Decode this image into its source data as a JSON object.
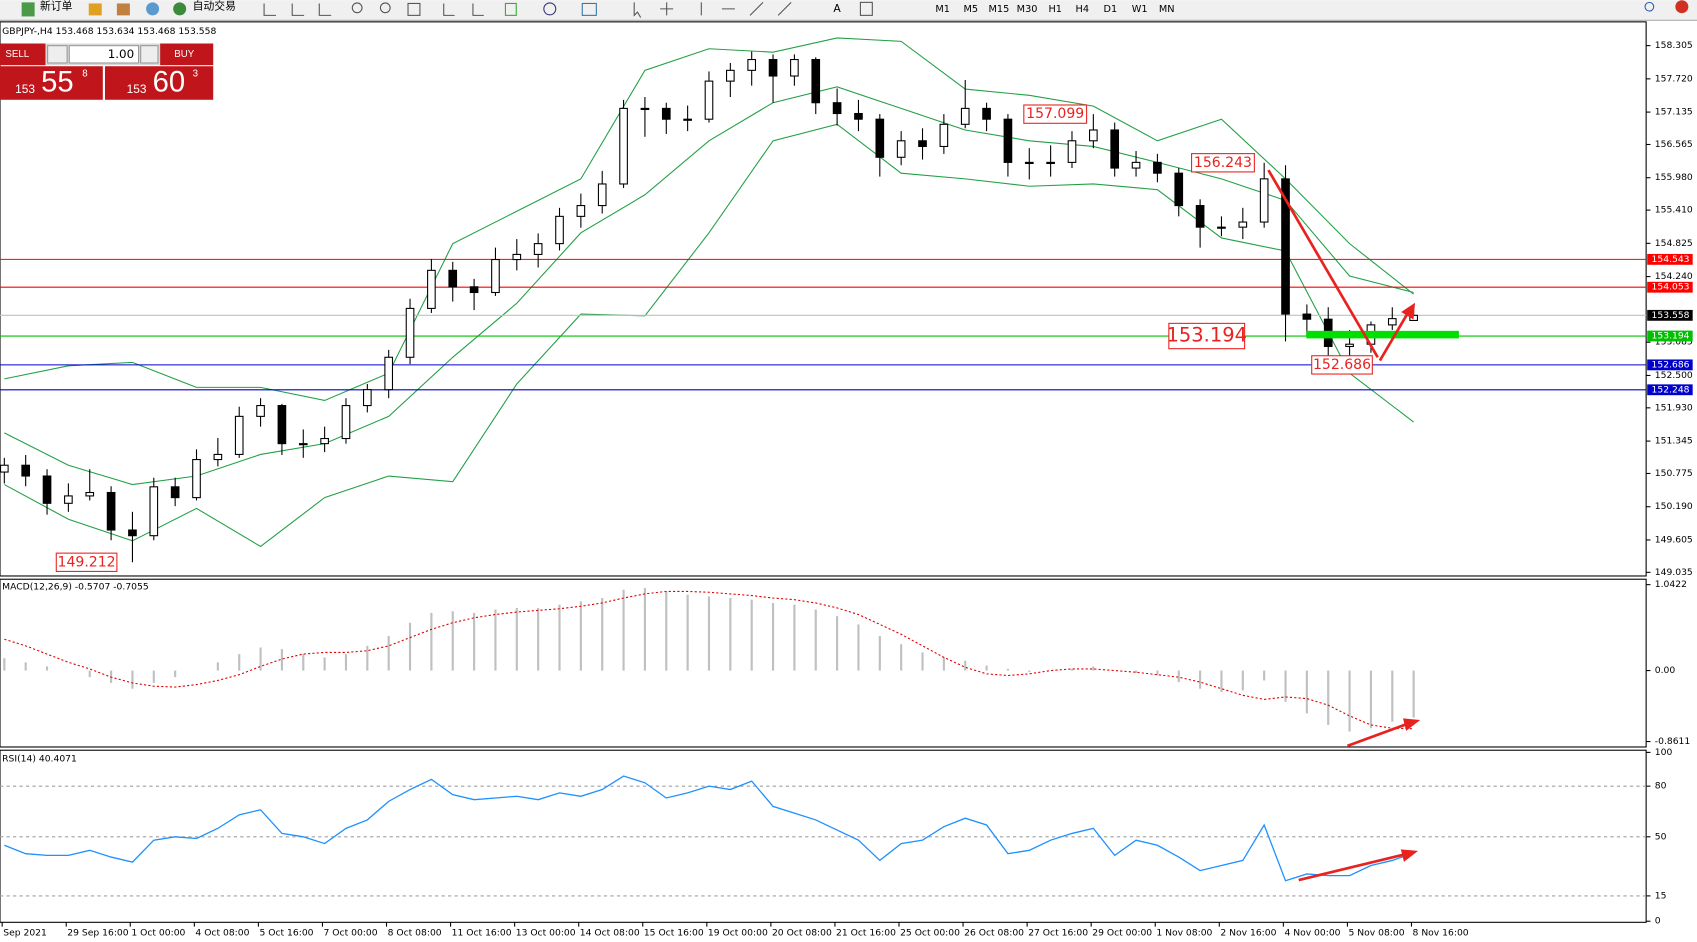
{
  "toolbar": {
    "new_order": "新订单",
    "auto_trading": "自动交易",
    "timeframes": [
      "M1",
      "M5",
      "M15",
      "M30",
      "H1",
      "H4",
      "D1",
      "W1",
      "MN"
    ]
  },
  "trade_panel": {
    "sell": "SELL",
    "buy": "BUY",
    "volume": "1.00",
    "bid": {
      "big": "153",
      "pips": "55",
      "point": "8"
    },
    "ask": {
      "big": "153",
      "pips": "60",
      "point": "3"
    }
  },
  "chart_data": [
    {
      "type": "candlestick",
      "title": "GBPJPY-,H4  153.468 153.634 153.468 153.558",
      "x_tick_labels": [
        "Sep 2021",
        "29 Sep 16:00",
        "1 Oct 00:00",
        "4 Oct 08:00",
        "5 Oct 16:00",
        "7 Oct 00:00",
        "8 Oct 08:00",
        "11 Oct 16:00",
        "13 Oct 00:00",
        "14 Oct 08:00",
        "15 Oct 16:00",
        "19 Oct 00:00",
        "20 Oct 08:00",
        "21 Oct 16:00",
        "25 Oct 00:00",
        "26 Oct 08:00",
        "27 Oct 16:00",
        "29 Oct 00:00",
        "1 Nov 08:00",
        "2 Nov 16:00",
        "4 Nov 00:00",
        "5 Nov 08:00",
        "8 Nov 16:00"
      ],
      "ohlc": [
        [
          150.8,
          151.05,
          150.6,
          150.92
        ],
        [
          150.92,
          151.1,
          150.55,
          150.73
        ],
        [
          150.73,
          150.85,
          150.05,
          150.25
        ],
        [
          150.25,
          150.6,
          150.1,
          150.38
        ],
        [
          150.38,
          150.85,
          150.3,
          150.44
        ],
        [
          150.44,
          150.55,
          149.6,
          149.78
        ],
        [
          149.78,
          150.1,
          149.212,
          149.68
        ],
        [
          149.68,
          150.7,
          149.6,
          150.54
        ],
        [
          150.54,
          150.7,
          150.2,
          150.35
        ],
        [
          150.35,
          151.2,
          150.3,
          151.02
        ],
        [
          151.02,
          151.4,
          150.9,
          151.11
        ],
        [
          151.11,
          151.95,
          151.05,
          151.78
        ],
        [
          151.78,
          152.1,
          151.6,
          151.97
        ],
        [
          151.97,
          152.0,
          151.1,
          151.3
        ],
        [
          151.3,
          151.55,
          151.05,
          151.3
        ],
        [
          151.3,
          151.6,
          151.15,
          151.39
        ],
        [
          151.39,
          152.1,
          151.3,
          151.97
        ],
        [
          151.97,
          152.35,
          151.85,
          152.25
        ],
        [
          152.25,
          152.95,
          152.1,
          152.82
        ],
        [
          152.82,
          153.85,
          152.7,
          153.68
        ],
        [
          153.68,
          154.55,
          153.6,
          154.35
        ],
        [
          154.35,
          154.5,
          153.8,
          154.06
        ],
        [
          154.06,
          154.2,
          153.65,
          153.96
        ],
        [
          153.96,
          154.75,
          153.9,
          154.54
        ],
        [
          154.54,
          154.9,
          154.35,
          154.63
        ],
        [
          154.63,
          155.0,
          154.4,
          154.82
        ],
        [
          154.82,
          155.45,
          154.7,
          155.3
        ],
        [
          155.3,
          155.7,
          155.1,
          155.49
        ],
        [
          155.49,
          156.1,
          155.35,
          155.87
        ],
        [
          155.87,
          157.35,
          155.8,
          157.2
        ],
        [
          157.2,
          157.4,
          156.7,
          157.2
        ],
        [
          157.2,
          157.3,
          156.75,
          157.01
        ],
        [
          157.01,
          157.25,
          156.8,
          157.01
        ],
        [
          157.01,
          157.85,
          156.95,
          157.68
        ],
        [
          157.68,
          158.0,
          157.4,
          157.87
        ],
        [
          157.87,
          158.2,
          157.6,
          158.06
        ],
        [
          158.06,
          158.15,
          157.3,
          157.77
        ],
        [
          157.77,
          158.15,
          157.6,
          158.06
        ],
        [
          158.06,
          158.1,
          157.1,
          157.3
        ],
        [
          157.3,
          157.55,
          156.9,
          157.11
        ],
        [
          157.11,
          157.35,
          156.8,
          157.01
        ],
        [
          157.01,
          157.1,
          156.0,
          156.34
        ],
        [
          156.34,
          156.8,
          156.2,
          156.63
        ],
        [
          156.63,
          156.85,
          156.3,
          156.53
        ],
        [
          156.53,
          157.1,
          156.4,
          156.92
        ],
        [
          156.92,
          157.7,
          156.85,
          157.2
        ],
        [
          157.2,
          157.3,
          156.8,
          157.01
        ],
        [
          157.01,
          157.1,
          156.0,
          156.25
        ],
        [
          156.25,
          156.5,
          155.95,
          156.25
        ],
        [
          156.25,
          156.55,
          156.0,
          156.25
        ],
        [
          156.25,
          156.8,
          156.15,
          156.63
        ],
        [
          156.63,
          157.099,
          156.5,
          156.82
        ],
        [
          156.82,
          156.95,
          156.0,
          156.15
        ],
        [
          156.15,
          156.45,
          156.0,
          156.25
        ],
        [
          156.25,
          156.4,
          155.9,
          156.06
        ],
        [
          156.06,
          156.15,
          155.3,
          155.49
        ],
        [
          155.49,
          155.6,
          154.75,
          155.11
        ],
        [
          155.11,
          155.3,
          154.95,
          155.11
        ],
        [
          155.11,
          155.45,
          154.9,
          155.2
        ],
        [
          155.2,
          156.243,
          155.1,
          155.96
        ],
        [
          155.96,
          156.2,
          153.1,
          153.58
        ],
        [
          153.58,
          153.75,
          153.2,
          153.49
        ],
        [
          153.49,
          153.7,
          152.8,
          153.01
        ],
        [
          153.01,
          153.3,
          152.686,
          153.05
        ],
        [
          153.05,
          153.45,
          152.9,
          153.39
        ],
        [
          153.39,
          153.7,
          153.3,
          153.5
        ],
        [
          153.468,
          153.634,
          153.468,
          153.558
        ]
      ],
      "up_color": "#ffffff",
      "down_color": "#000000",
      "bands": {
        "color": "#22a045",
        "x": [
          0,
          3,
          6,
          9,
          12,
          15,
          18,
          21,
          24,
          27,
          30,
          33,
          36,
          39,
          42,
          45,
          48,
          51,
          54,
          57,
          60,
          63,
          66
        ],
        "upper": [
          152.44,
          152.67,
          152.73,
          152.29,
          152.29,
          152.06,
          152.54,
          154.82,
          155.39,
          155.96,
          157.87,
          158.25,
          158.19,
          158.44,
          158.38,
          157.54,
          157.43,
          157.24,
          156.63,
          157.01,
          155.96,
          154.82,
          153.93
        ],
        "middle": [
          151.49,
          150.92,
          150.58,
          150.73,
          151.11,
          151.3,
          151.78,
          152.82,
          153.77,
          155.01,
          155.68,
          156.63,
          157.3,
          157.58,
          157.2,
          156.82,
          156.63,
          156.53,
          156.25,
          155.96,
          155.58,
          154.25,
          153.96
        ],
        "lower": [
          150.58,
          149.97,
          149.59,
          150.16,
          149.49,
          150.35,
          150.73,
          150.63,
          152.35,
          153.58,
          153.55,
          155.01,
          156.63,
          156.92,
          156.06,
          155.96,
          155.83,
          155.87,
          155.77,
          154.92,
          154.69,
          152.54,
          151.68
        ]
      },
      "ylim": [
        148.99,
        158.685
      ],
      "yticks": [
        158.305,
        {
          "value": 157.72,
          "label": "157.720"
        },
        157.135,
        156.565,
        {
          "value": 155.98,
          "label": "155.980"
        },
        {
          "value": 155.41,
          "label": "155.410"
        },
        154.825,
        {
          "value": 154.24,
          "label": "154.240"
        },
        153.085,
        {
          "value": 152.5,
          "label": "152.500"
        },
        {
          "value": 151.93,
          "label": "151.930"
        },
        151.345,
        150.775,
        {
          "value": 150.19,
          "label": "150.190"
        },
        149.605,
        149.035
      ],
      "levels": [
        {
          "value": 154.543,
          "color": "#ff0000",
          "label_color": "#ff0000"
        },
        {
          "value": 154.053,
          "color": "#ff0000",
          "label_color": "#ff0000"
        },
        {
          "value": 153.558,
          "color": "#c0c0c0",
          "label_color": "#000000"
        },
        {
          "value": 153.194,
          "color": "#00c000",
          "label_color": "#00c000"
        },
        {
          "value": 152.686,
          "color": "#0000cc",
          "label_color": "#0000cc"
        },
        {
          "value": 152.248,
          "color": "#0000cc",
          "label_color": "#0000cc"
        }
      ],
      "annotations": [
        157.099,
        156.243,
        153.194,
        152.686,
        149.212
      ]
    },
    {
      "type": "macd",
      "title": "MACD(12,26,9) -0.5707 -0.7055",
      "histogram": [
        0.15,
        0.1,
        0.05,
        0.0,
        -0.08,
        -0.15,
        -0.22,
        -0.15,
        -0.08,
        0.0,
        0.1,
        0.2,
        0.28,
        0.26,
        0.2,
        0.16,
        0.2,
        0.3,
        0.42,
        0.58,
        0.7,
        0.72,
        0.7,
        0.74,
        0.76,
        0.76,
        0.8,
        0.84,
        0.88,
        0.98,
        1.0,
        0.96,
        0.92,
        0.9,
        0.88,
        0.86,
        0.82,
        0.8,
        0.74,
        0.66,
        0.56,
        0.42,
        0.32,
        0.22,
        0.16,
        0.12,
        0.06,
        0.02,
        -0.02,
        0.0,
        0.02,
        0.05,
        0.0,
        -0.03,
        -0.06,
        -0.14,
        -0.22,
        -0.26,
        -0.24,
        -0.12,
        -0.38,
        -0.52,
        -0.66,
        -0.74,
        -0.7,
        -0.62,
        -0.5707
      ],
      "signal": [
        0.38,
        0.3,
        0.2,
        0.1,
        0.02,
        -0.08,
        -0.15,
        -0.19,
        -0.2,
        -0.17,
        -0.12,
        -0.05,
        0.05,
        0.14,
        0.2,
        0.22,
        0.22,
        0.24,
        0.3,
        0.4,
        0.5,
        0.58,
        0.64,
        0.68,
        0.71,
        0.73,
        0.75,
        0.78,
        0.82,
        0.88,
        0.93,
        0.96,
        0.96,
        0.95,
        0.93,
        0.91,
        0.88,
        0.86,
        0.82,
        0.76,
        0.68,
        0.56,
        0.44,
        0.3,
        0.16,
        0.04,
        -0.04,
        -0.06,
        -0.04,
        0.0,
        0.02,
        0.02,
        0.0,
        -0.02,
        -0.05,
        -0.08,
        -0.14,
        -0.22,
        -0.3,
        -0.35,
        -0.32,
        -0.34,
        -0.42,
        -0.55,
        -0.66,
        -0.7,
        -0.7055
      ],
      "hist_color": "#c0c0c0",
      "signal_color": "#e00000",
      "ylim": [
        -0.927,
        1.108
      ],
      "yticks": [
        1.0422,
        {
          "value": 0,
          "label": "0.00"
        },
        -0.8611
      ]
    },
    {
      "type": "rsi",
      "title": "RSI(14) 40.4071",
      "values": [
        45,
        40,
        39,
        39,
        42,
        38,
        35,
        48,
        50,
        49,
        55,
        63,
        66,
        52,
        50,
        46,
        55,
        60,
        71,
        78,
        84,
        75,
        72,
        73,
        74,
        72,
        76,
        74,
        78,
        86,
        82,
        73,
        76,
        80,
        78,
        83,
        68,
        64,
        60,
        54,
        48,
        36,
        46,
        48,
        56,
        61,
        57,
        40,
        42,
        48,
        52,
        55,
        39,
        48,
        45,
        38,
        30,
        33,
        36,
        57,
        24,
        28,
        27,
        27,
        33,
        36,
        40.4071
      ],
      "color": "#1e90ff",
      "grid": true,
      "ylim": [
        0,
        100
      ],
      "yticks": [
        100,
        80,
        50,
        15,
        0
      ]
    }
  ]
}
